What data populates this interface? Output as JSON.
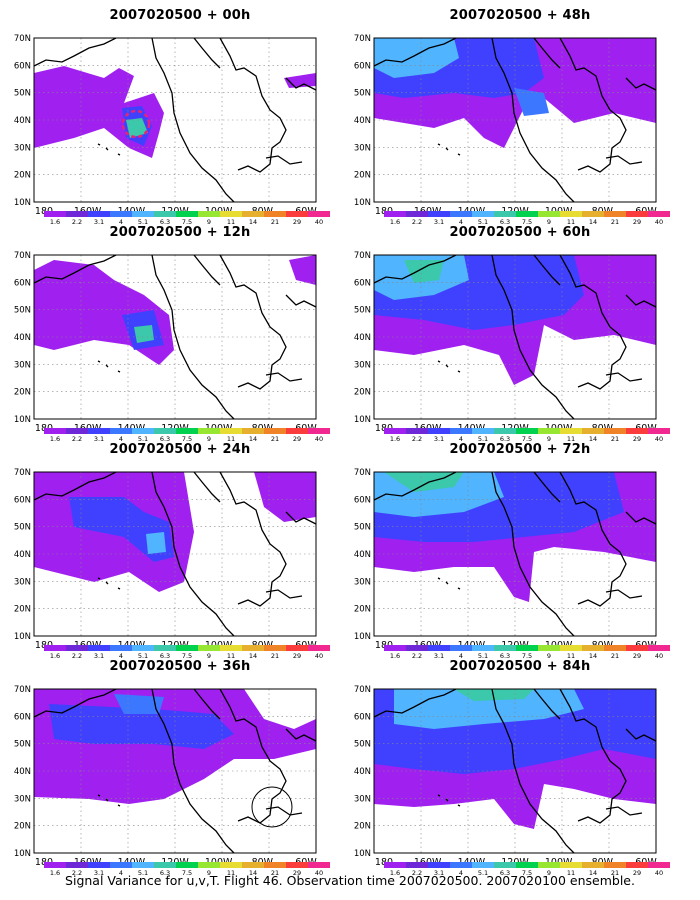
{
  "panels": [
    {
      "title": "2007020500 + 00h"
    },
    {
      "title": "2007020500 + 48h"
    },
    {
      "title": "2007020500 + 12h"
    },
    {
      "title": "2007020500 + 60h"
    },
    {
      "title": "2007020500 + 24h"
    },
    {
      "title": "2007020500 + 72h"
    },
    {
      "title": "2007020500 + 36h"
    },
    {
      "title": "2007020500 + 84h"
    }
  ],
  "lat_labels": [
    "70N",
    "60N",
    "50N",
    "40N",
    "30N",
    "20N",
    "10N"
  ],
  "lon_labels": [
    "180",
    "160W",
    "140W",
    "120W",
    "100W",
    "80W",
    "60W"
  ],
  "legend": {
    "values": [
      "1.6",
      "2.2",
      "3.1",
      "4",
      "5.1",
      "6.3",
      "7.5",
      "9",
      "11",
      "14",
      "21",
      "29",
      "40"
    ],
    "colors": [
      "#a020f0",
      "#6e28d8",
      "#4040ff",
      "#3c78ff",
      "#50b4ff",
      "#3cc8aa",
      "#00d250",
      "#96e632",
      "#e6dc32",
      "#e6af2d",
      "#f08228",
      "#fa3c3c",
      "#f02890"
    ]
  },
  "caption": "Signal Variance for u,v,T. Flight 46. Observation time 2007020500. 2007020100 ensemble."
}
